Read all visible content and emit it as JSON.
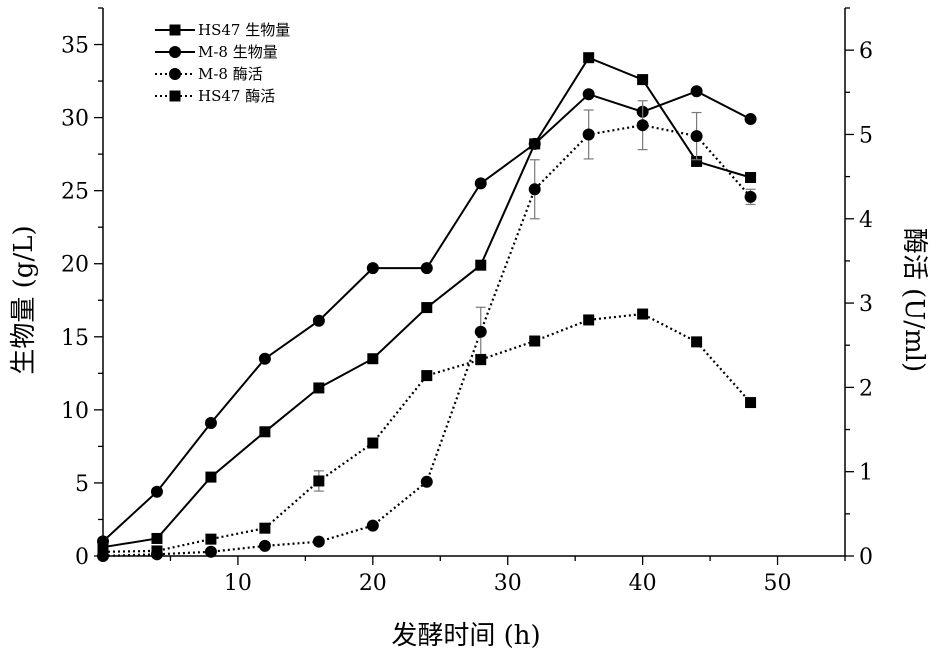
{
  "chart_data": {
    "type": "line",
    "xlabel": "发酵时间 (h)",
    "ylabel_left": "生物量 (g/L)",
    "ylabel_right": "酶活 (U/ml)",
    "xlim": [
      0,
      55
    ],
    "ylim_left": [
      0,
      37.5
    ],
    "ylim_right": [
      0,
      6.5
    ],
    "x_ticks": [
      10,
      20,
      30,
      40,
      50
    ],
    "y_left_ticks": [
      0,
      5,
      10,
      15,
      20,
      25,
      30,
      35
    ],
    "y_right_ticks": [
      0,
      1,
      2,
      3,
      4,
      5,
      6
    ],
    "legend_position": "top-left",
    "grid": false,
    "series": [
      {
        "name": "HS47 生物量",
        "axis": "left",
        "marker": "square",
        "line": "solid",
        "x": [
          0,
          4,
          8,
          12,
          16,
          20,
          24,
          28,
          32,
          36,
          40,
          44,
          48
        ],
        "y": [
          0.6,
          1.2,
          5.4,
          8.5,
          11.5,
          13.5,
          17.0,
          19.9,
          28.2,
          34.1,
          32.6,
          27.0,
          25.9
        ]
      },
      {
        "name": "M-8 生物量",
        "axis": "left",
        "marker": "circle",
        "line": "solid",
        "x": [
          0,
          4,
          8,
          12,
          16,
          20,
          24,
          28,
          32,
          36,
          40,
          44,
          48
        ],
        "y": [
          1.0,
          4.4,
          9.1,
          13.5,
          16.1,
          19.7,
          19.7,
          25.5,
          28.2,
          31.6,
          30.4,
          31.8,
          29.9
        ]
      },
      {
        "name": "M-8 酶活",
        "axis": "right",
        "marker": "circle",
        "line": "dotted",
        "x": [
          0,
          4,
          8,
          12,
          16,
          20,
          24,
          28,
          32,
          36,
          40,
          44,
          48
        ],
        "y": [
          0.0,
          0.02,
          0.05,
          0.12,
          0.17,
          0.36,
          0.88,
          2.66,
          4.35,
          5.0,
          5.11,
          4.98,
          4.26
        ],
        "error": [
          0,
          0,
          0,
          0,
          0,
          0,
          0,
          0.29,
          0.35,
          0.29,
          0.29,
          0.28,
          0.09
        ]
      },
      {
        "name": "HS47 酶活",
        "axis": "right",
        "marker": "square",
        "line": "dotted",
        "x": [
          0,
          4,
          8,
          12,
          16,
          20,
          24,
          28,
          32,
          36,
          40,
          44,
          48
        ],
        "y": [
          0.05,
          0.06,
          0.2,
          0.33,
          0.89,
          1.34,
          2.14,
          2.33,
          2.55,
          2.8,
          2.87,
          2.54,
          1.82
        ],
        "error": [
          0,
          0,
          0,
          0,
          0.12,
          0,
          0,
          0.06,
          0,
          0.05,
          0,
          0,
          0.05
        ]
      }
    ]
  }
}
